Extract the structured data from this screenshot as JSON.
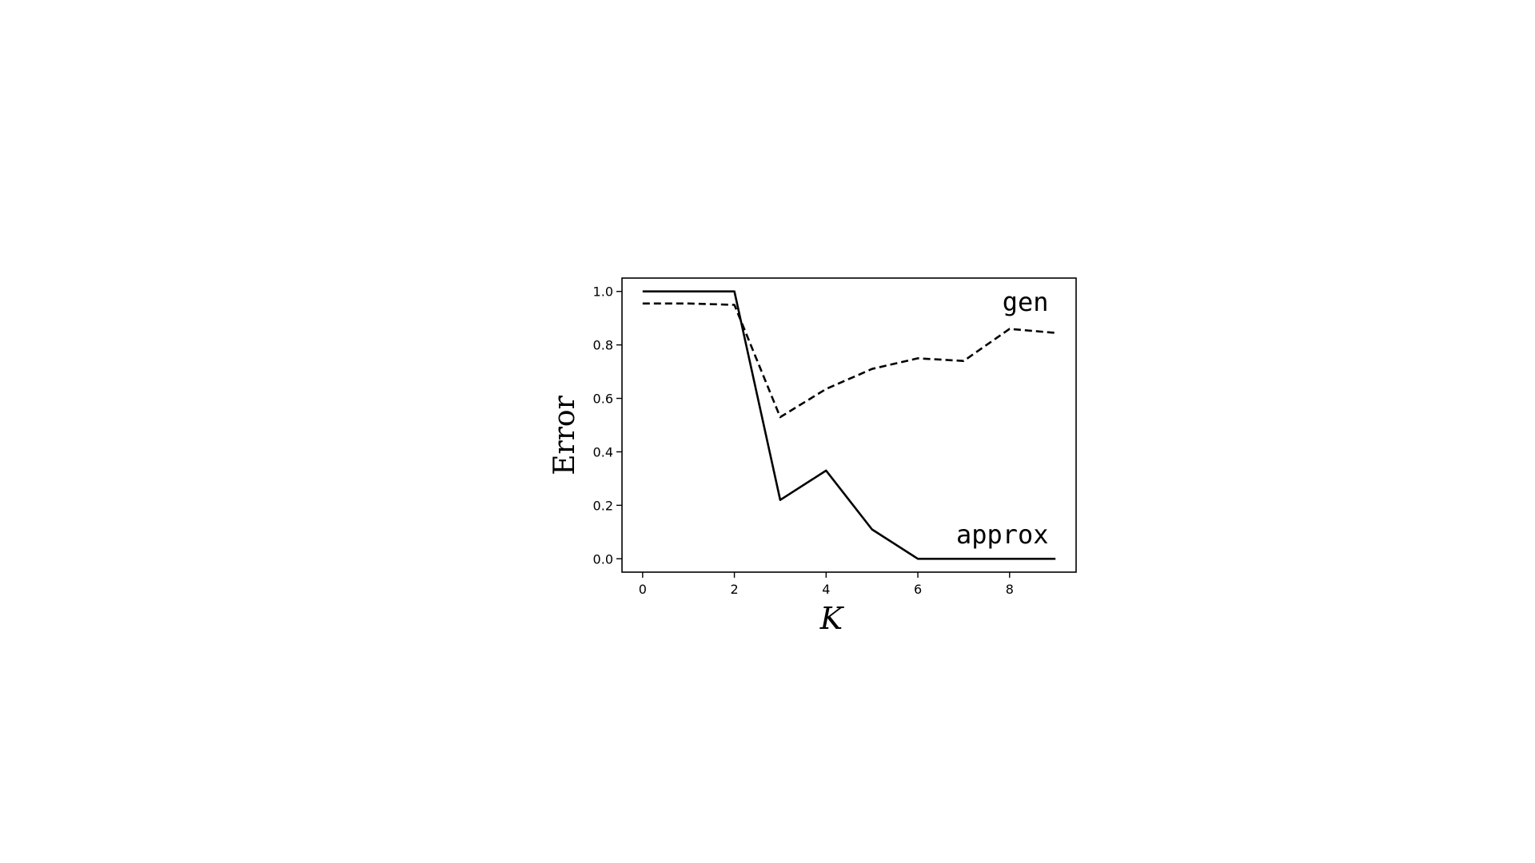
{
  "chart_data": {
    "type": "line",
    "title": "",
    "xlabel": "K",
    "ylabel": "Error",
    "xlim": [
      -0.45,
      9.45
    ],
    "ylim": [
      -0.05,
      1.05
    ],
    "xticks": [
      "0",
      "2",
      "4",
      "6",
      "8"
    ],
    "yticks": [
      "0.0",
      "0.2",
      "0.4",
      "0.6",
      "0.8",
      "1.0"
    ],
    "grid": false,
    "legend": "none",
    "x": [
      0,
      1,
      2,
      3,
      4,
      5,
      6,
      7,
      8,
      9
    ],
    "series": [
      {
        "name": "approx",
        "style": "solid",
        "color": "#000000",
        "values": [
          1.0,
          1.0,
          1.0,
          0.22,
          0.33,
          0.11,
          0.0,
          0.0,
          0.0,
          0.0
        ]
      },
      {
        "name": "gen",
        "style": "dashed",
        "color": "#000000",
        "values": [
          0.955,
          0.955,
          0.95,
          0.53,
          0.635,
          0.71,
          0.75,
          0.74,
          0.86,
          0.845
        ]
      }
    ],
    "annotations": [
      {
        "text": "gen",
        "x": 8.85,
        "y": 0.96
      },
      {
        "text": "approx",
        "x": 8.85,
        "y": 0.09
      }
    ]
  }
}
